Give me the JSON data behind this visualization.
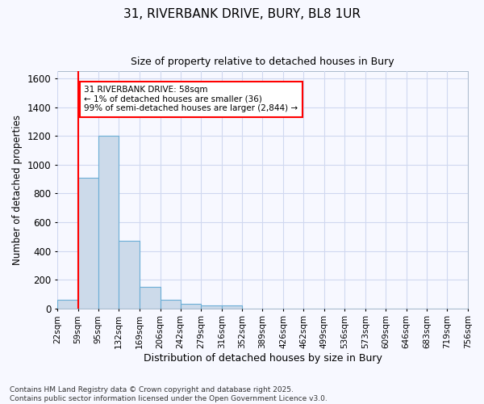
{
  "title1": "31, RIVERBANK DRIVE, BURY, BL8 1UR",
  "title2": "Size of property relative to detached houses in Bury",
  "xlabel": "Distribution of detached houses by size in Bury",
  "ylabel": "Number of detached properties",
  "bin_labels": [
    "22sqm",
    "59sqm",
    "95sqm",
    "132sqm",
    "169sqm",
    "206sqm",
    "242sqm",
    "279sqm",
    "316sqm",
    "352sqm",
    "389sqm",
    "426sqm",
    "462sqm",
    "499sqm",
    "536sqm",
    "573sqm",
    "609sqm",
    "646sqm",
    "683sqm",
    "719sqm",
    "756sqm"
  ],
  "bin_edges": [
    22,
    59,
    95,
    132,
    169,
    206,
    242,
    279,
    316,
    352,
    389,
    426,
    462,
    499,
    536,
    573,
    609,
    646,
    683,
    719,
    756
  ],
  "bar_heights": [
    60,
    910,
    1200,
    470,
    150,
    60,
    30,
    20,
    20,
    0,
    0,
    0,
    0,
    0,
    0,
    0,
    0,
    0,
    0,
    0
  ],
  "bar_color": "#ccdaea",
  "bar_edge_color": "#6baed6",
  "red_line_x": 59,
  "annotation_text": "31 RIVERBANK DRIVE: 58sqm\n← 1% of detached houses are smaller (36)\n99% of semi-detached houses are larger (2,844) →",
  "annotation_box_color": "white",
  "annotation_box_edge_color": "red",
  "ylim": [
    0,
    1650
  ],
  "yticks": [
    0,
    200,
    400,
    600,
    800,
    1000,
    1200,
    1400,
    1600
  ],
  "background_color": "#f7f8ff",
  "grid_color": "#d0d8f0",
  "footnote": "Contains HM Land Registry data © Crown copyright and database right 2025.\nContains public sector information licensed under the Open Government Licence v3.0."
}
